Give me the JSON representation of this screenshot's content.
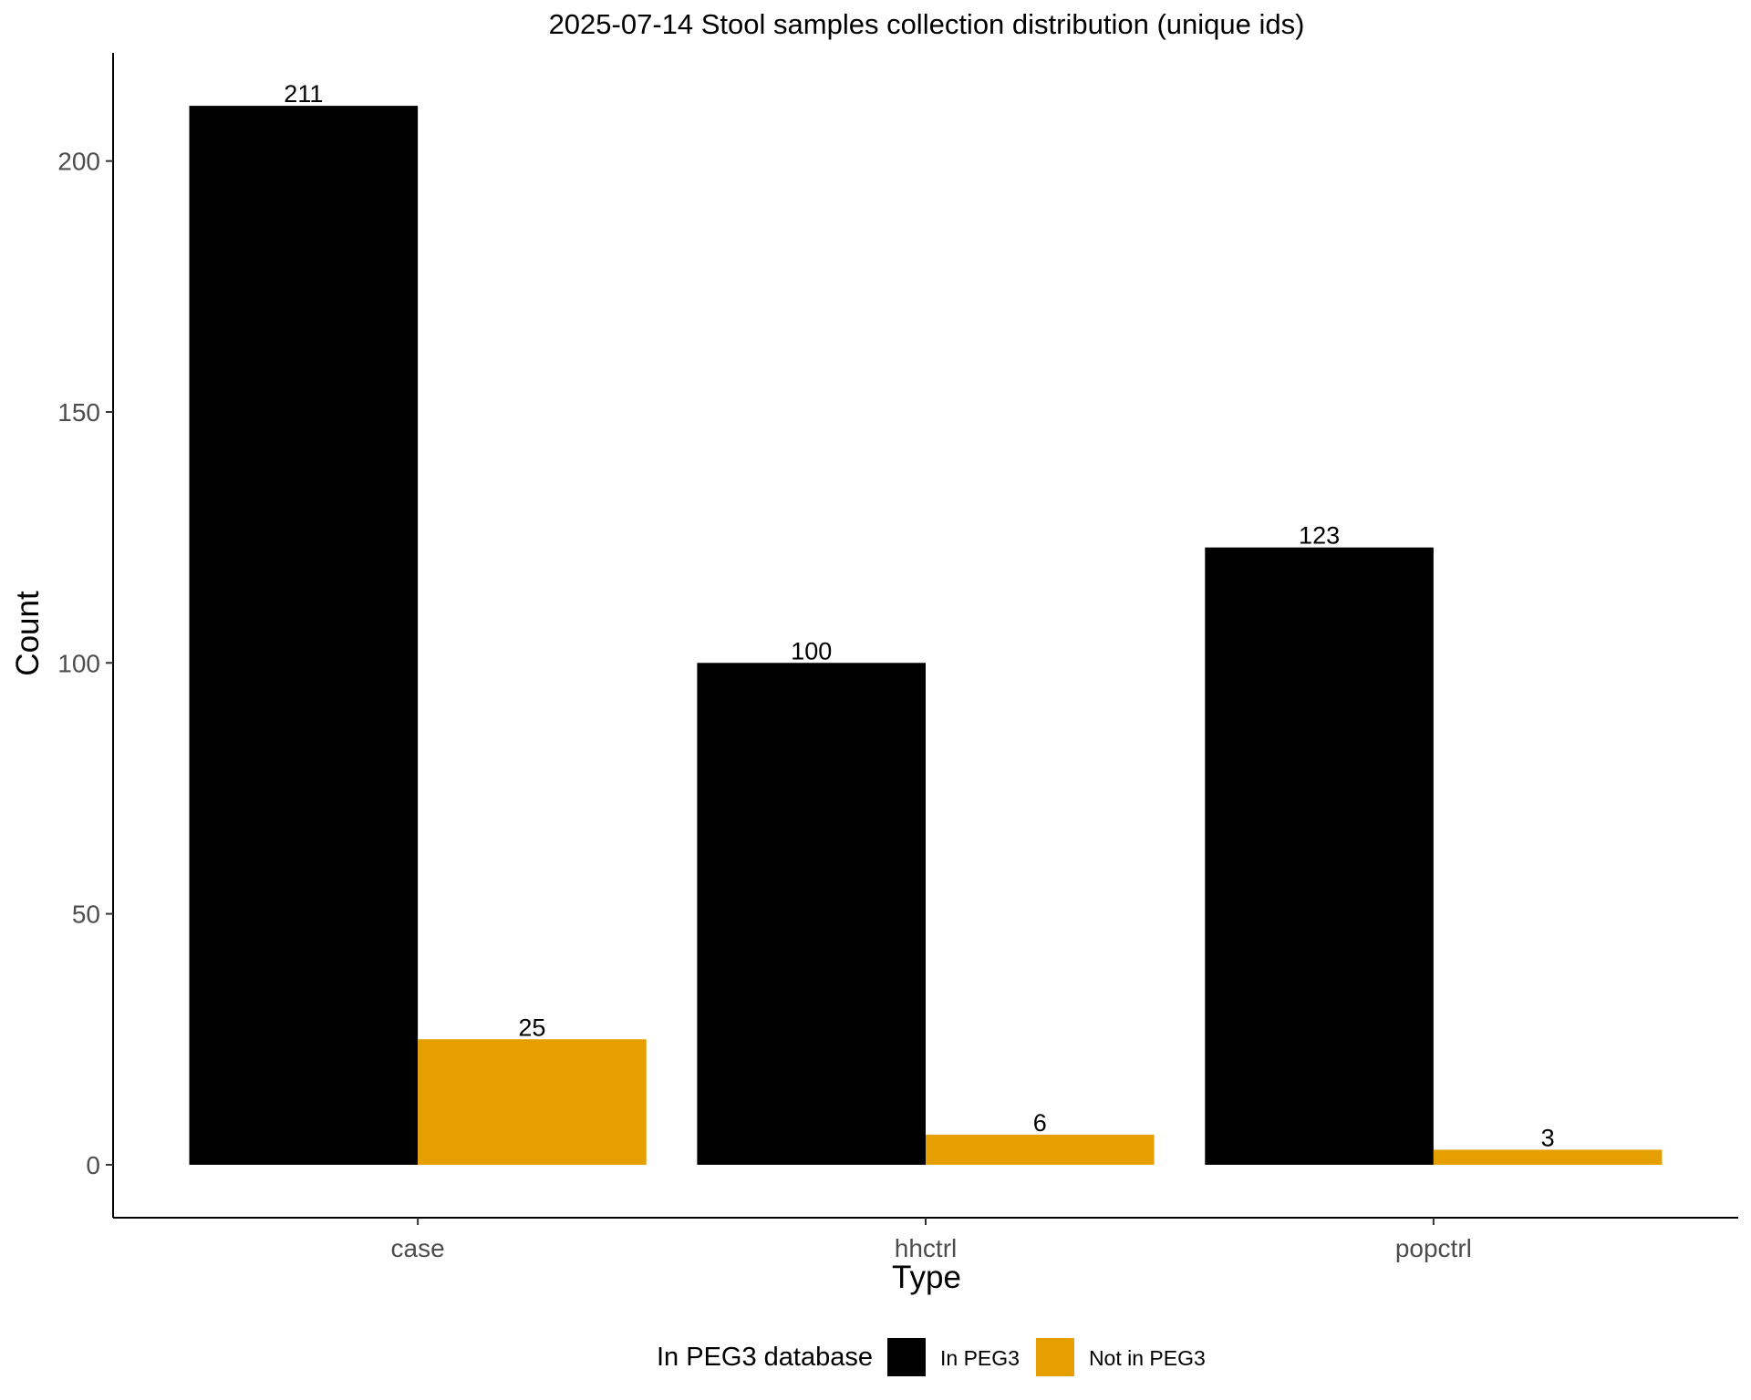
{
  "chart_data": {
    "type": "bar",
    "title": "2025-07-14 Stool samples collection distribution (unique ids)",
    "xlabel": "Type",
    "ylabel": "Count",
    "categories": [
      "case",
      "hhctrl",
      "popctrl"
    ],
    "series": [
      {
        "name": "In PEG3",
        "color": "#000000",
        "values": [
          211,
          100,
          123
        ]
      },
      {
        "name": "Not in PEG3",
        "color": "#E69F00",
        "values": [
          25,
          6,
          3
        ]
      }
    ],
    "ylim": [
      -10.55,
      221.55
    ],
    "yticks": [
      0,
      50,
      100,
      150,
      200
    ],
    "grid": false,
    "legend": {
      "title": "In PEG3 database",
      "position": "bottom"
    },
    "data_labels": true
  }
}
